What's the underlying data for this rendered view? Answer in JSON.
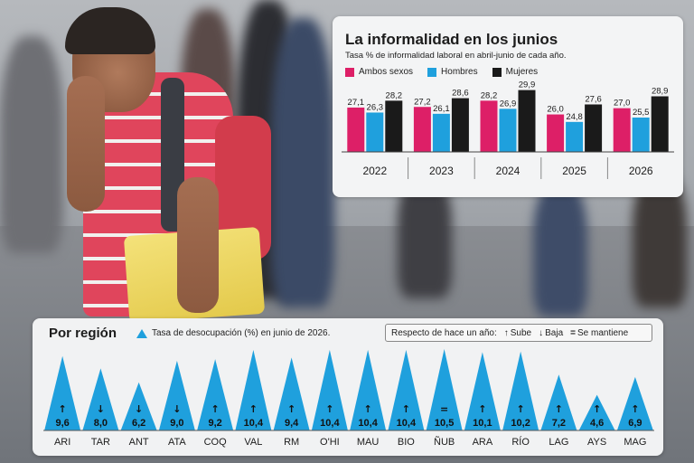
{
  "colors": {
    "ambos": "#dd1f67",
    "hombres": "#1fa0dd",
    "mujeres": "#1a1a1a",
    "triangle": "#1fa0dd"
  },
  "top": {
    "title": "La informalidad en los junios",
    "subtitle": "Tasa % de informalidad laboral en abril-junio de cada año.",
    "legend": [
      "Ambos sexos",
      "Hombres",
      "Mujeres"
    ]
  },
  "bottom": {
    "title": "Por región",
    "legend_label": "Tasa de desocupación (%) en junio de 2026.",
    "change_box": {
      "label": "Respecto de hace un año:",
      "up": "Sube",
      "down": "Baja",
      "same": "Se mantiene"
    }
  },
  "chart_data": [
    {
      "type": "bar",
      "title": "La informalidad en los junios",
      "subtitle": "Tasa % de informalidad laboral en abril-junio de cada año.",
      "categories": [
        "2022",
        "2023",
        "2024",
        "2025",
        "2026"
      ],
      "series": [
        {
          "name": "Ambos sexos",
          "values": [
            27.1,
            27.2,
            28.2,
            26.0,
            27.0
          ]
        },
        {
          "name": "Hombres",
          "values": [
            26.3,
            26.1,
            26.9,
            24.8,
            25.5
          ]
        },
        {
          "name": "Mujeres",
          "values": [
            28.2,
            28.6,
            29.9,
            27.6,
            28.9
          ]
        }
      ],
      "labels": [
        [
          "27,1",
          "27,2",
          "28,2",
          "26,0",
          "27,0"
        ],
        [
          "26,3",
          "26,1",
          "26,9",
          "24,8",
          "25,5"
        ],
        [
          "28,2",
          "28,6",
          "29,9",
          "27,6",
          "28,9"
        ]
      ],
      "ylim": [
        20,
        31
      ]
    },
    {
      "type": "bar",
      "title": "Por región",
      "subtitle": "Tasa de desocupación (%) en junio de 2026.",
      "categories": [
        "ARI",
        "TAR",
        "ANT",
        "ATA",
        "COQ",
        "VAL",
        "RM",
        "O'HI",
        "MAU",
        "BIO",
        "ÑUB",
        "ARA",
        "RÍO",
        "LAG",
        "AYS",
        "MAG"
      ],
      "values": [
        9.6,
        8.0,
        6.2,
        9.0,
        9.2,
        10.4,
        9.4,
        10.4,
        10.4,
        10.4,
        10.5,
        10.1,
        10.2,
        7.2,
        4.6,
        6.9
      ],
      "labels": [
        "9,6",
        "8,0",
        "6,2",
        "9,0",
        "9,2",
        "10,4",
        "9,4",
        "10,4",
        "10,4",
        "10,4",
        "10,5",
        "10,1",
        "10,2",
        "7,2",
        "4,6",
        "6,9"
      ],
      "change": [
        "up",
        "down",
        "down",
        "down",
        "up",
        "up",
        "up",
        "up",
        "up",
        "up",
        "same",
        "up",
        "up",
        "up",
        "up",
        "up"
      ],
      "ylim": [
        0,
        10.5
      ]
    }
  ]
}
